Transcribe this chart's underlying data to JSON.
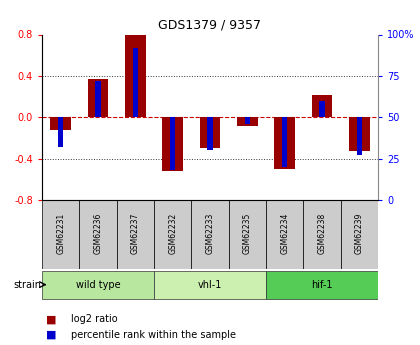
{
  "title": "GDS1379 / 9357",
  "samples": [
    "GSM62231",
    "GSM62236",
    "GSM62237",
    "GSM62232",
    "GSM62233",
    "GSM62235",
    "GSM62234",
    "GSM62238",
    "GSM62239"
  ],
  "log2_ratio": [
    -0.12,
    0.37,
    0.8,
    -0.52,
    -0.3,
    -0.08,
    -0.5,
    0.22,
    -0.33
  ],
  "percentile_rank": [
    32,
    72,
    92,
    18,
    30,
    46,
    20,
    60,
    27
  ],
  "groups": [
    {
      "label": "wild type",
      "start": 0,
      "end": 3,
      "color": "#b8e8a0"
    },
    {
      "label": "vhl-1",
      "start": 3,
      "end": 6,
      "color": "#ccf0b0"
    },
    {
      "label": "hif-1",
      "start": 6,
      "end": 9,
      "color": "#55cc55"
    }
  ],
  "ylim_left": [
    -0.8,
    0.8
  ],
  "ylim_right": [
    0,
    100
  ],
  "yticks_left": [
    -0.8,
    -0.4,
    0.0,
    0.4,
    0.8
  ],
  "yticks_right": [
    0,
    25,
    50,
    75,
    100
  ],
  "bar_color_log2": "#990000",
  "bar_color_pct": "#0000cc",
  "zero_line_color": "#cc0000",
  "grid_color": "#333333",
  "bg_color": "#ffffff",
  "sample_label_bg": "#cccccc",
  "log2_bar_width": 0.55,
  "pct_bar_width": 0.15
}
